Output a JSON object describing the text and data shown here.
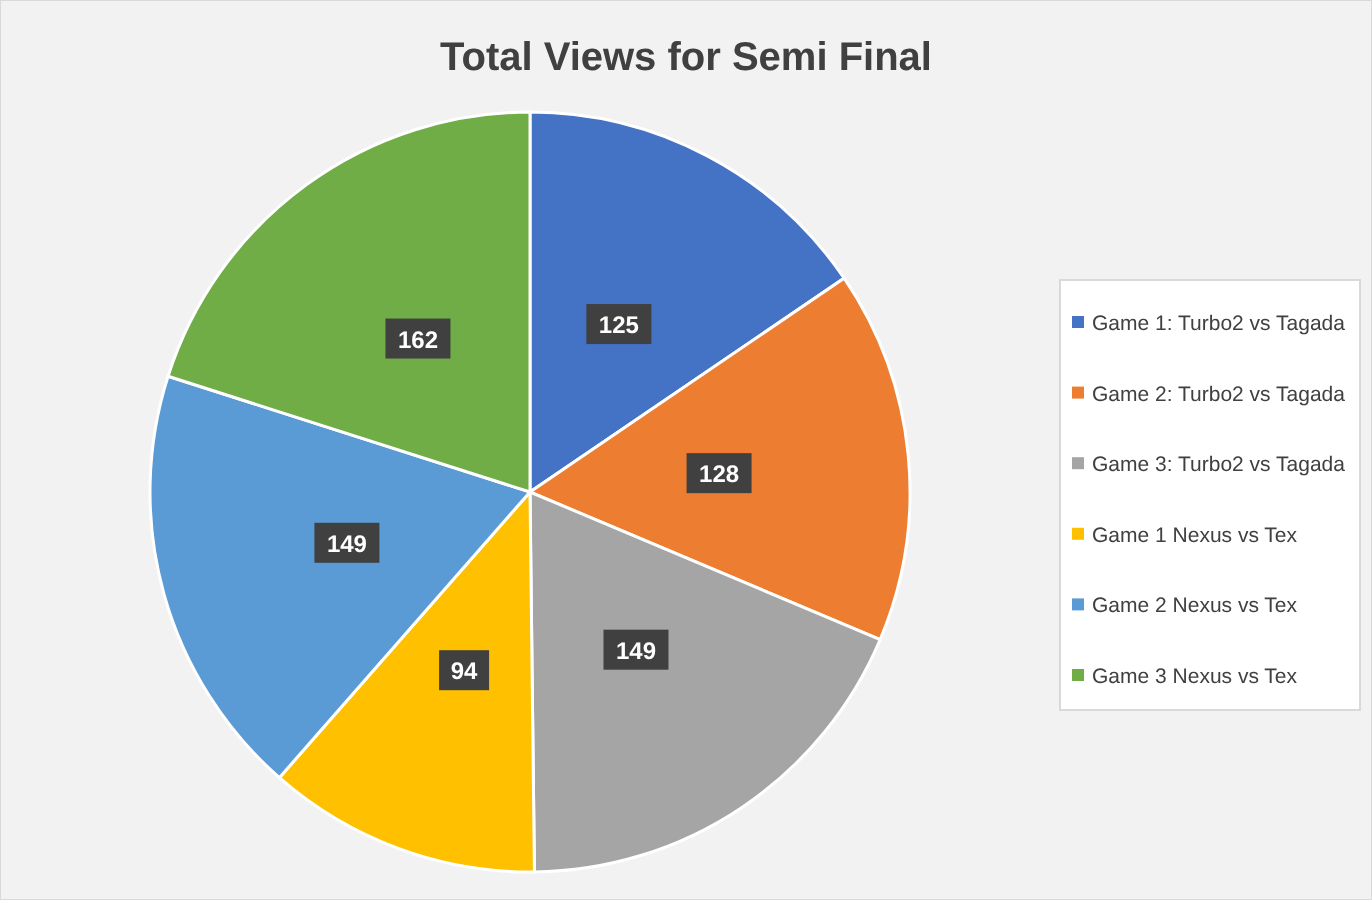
{
  "chart_data": {
    "type": "pie",
    "title": "Total Views for Semi Final",
    "categories": [
      "Game 1: Turbo2 vs Tagada",
      "Game 2: Turbo2 vs Tagada",
      "Game 3: Turbo2 vs Tagada",
      "Game 1 Nexus vs Tex",
      "Game 2 Nexus vs Tex",
      "Game 3 Nexus vs Tex"
    ],
    "values": [
      125,
      128,
      149,
      94,
      149,
      162
    ],
    "colors": [
      "#4472c4",
      "#ed7d31",
      "#a5a5a5",
      "#ffc000",
      "#5b9bd5",
      "#70ad47"
    ],
    "data_labels": true,
    "legend": "right"
  }
}
